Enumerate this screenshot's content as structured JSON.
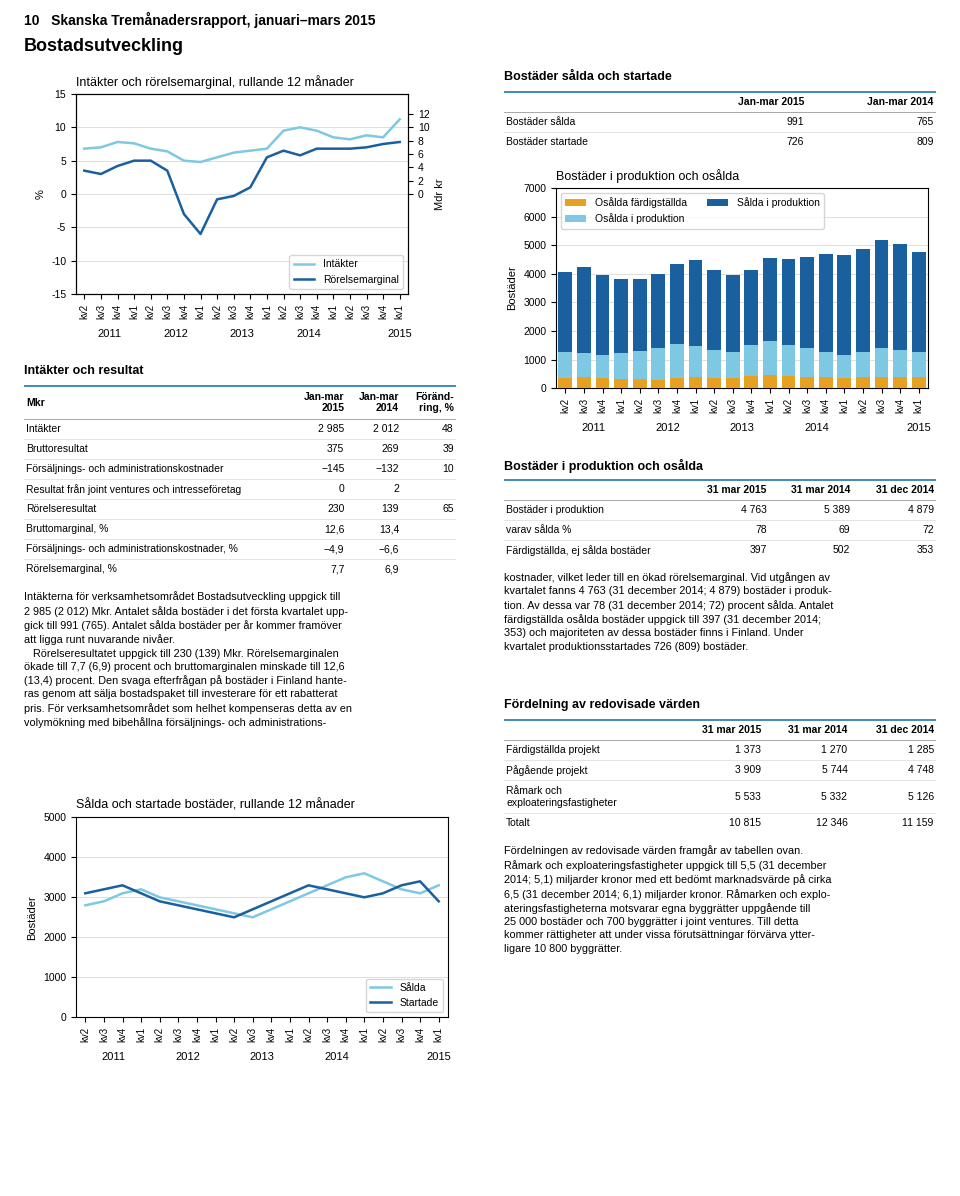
{
  "title": "10   Skanska Tremånadersrapport, januari–mars 2015",
  "subtitle": "Bostadsutveckling",
  "chart_data": [
    {
      "type": "line",
      "title": "Intäkter och rörelsemarginal, rullande 12 månader",
      "y_label": "%",
      "y2_label": "Mdr kr",
      "categories": [
        "kv2",
        "kv3",
        "kv4",
        "kv1",
        "kv2",
        "kv3",
        "kv4",
        "kv1",
        "kv2",
        "kv3",
        "kv4",
        "kv1",
        "kv2",
        "kv3",
        "kv4",
        "kv1",
        "kv2",
        "kv3",
        "kv4",
        "kv1"
      ],
      "series": [
        {
          "name": "Intäkter",
          "color": "#7ec8e3",
          "axis": "y2",
          "values": [
            6.8,
            7.0,
            7.8,
            7.6,
            6.8,
            6.4,
            5.0,
            4.8,
            5.5,
            6.2,
            6.5,
            6.8,
            9.5,
            10.0,
            9.5,
            8.5,
            8.2,
            8.8,
            8.5,
            11.2
          ]
        },
        {
          "name": "Rörelsemarginal",
          "color": "#1a5f9e",
          "values": [
            3.5,
            3.0,
            4.2,
            5.0,
            5.0,
            3.5,
            -3.0,
            -6.0,
            -0.8,
            -0.3,
            1.0,
            5.5,
            6.5,
            5.8,
            6.8,
            6.8,
            6.8,
            7.0,
            7.5,
            7.8
          ]
        }
      ],
      "ylim": [
        -15,
        15
      ],
      "yticks": [
        15,
        10,
        5,
        0,
        -5,
        -10,
        -15
      ],
      "y2lim": [
        -15,
        15
      ],
      "y2ticks": [
        12,
        10,
        8,
        6,
        4,
        2,
        0
      ],
      "annotations": [
        {
          "text": "2011",
          "x": 1.5
        },
        {
          "text": "2012",
          "x": 5.5
        },
        {
          "text": "2013",
          "x": 9.5
        },
        {
          "text": "2014",
          "x": 13.5
        },
        {
          "text": "2015",
          "x": 19.0
        }
      ],
      "grid": true,
      "legend": "lower right"
    },
    {
      "type": "table",
      "title": "Intäkter och resultat",
      "columns": [
        "Mkr",
        "Jan-mar\n2015",
        "Jan-mar\n2014",
        "Föränd-\nring, %"
      ],
      "rows": [
        [
          "Intäkter",
          "2 985",
          "2 012",
          "48"
        ],
        [
          "Bruttoresultat",
          "375",
          "269",
          "39"
        ],
        [
          "Försäljnings- och administrationskostnader",
          "−145",
          "−132",
          "10"
        ],
        [
          "Resultat från joint ventures och intresseföretag",
          "0",
          "2",
          null
        ],
        [
          "Rörelseresultat",
          "230",
          "139",
          "65"
        ],
        [
          "Bruttomarginal, %",
          "12,6",
          "13,4",
          null
        ],
        [
          "Försäljnings- och administrationskostnader, %",
          "−4,9",
          "−6,6",
          null
        ],
        [
          "Rörelsemarginal, %",
          "7,7",
          "6,9",
          null
        ]
      ]
    },
    {
      "type": "text",
      "text": "Intäkterna för verksamhetsområdet Bostadsutveckling uppgick till\n2 985 (2 012) Mkr. Antalet sålda bostäder i det första kvartalet upp-\ngick till 991 (765). Antalet sålda bostäder per år kommer framöver\natt ligga runt nuvarande nivåer.\n   Rörelseresultatet uppgick till 230 (139) Mkr. Rörelsemarginalen\nökade till 7,7 (6,9) procent och bruttomarginalen minskade till 12,6\n(13,4) procent. Den svaga efterfrågan på bostäder i Finland hante-\nras genom att sälja bostadspaket till investerare för ett rabatterat\npris. För verksamhetsområdet som helhet kompenseras detta av en\nvolymökning med bibehållna försäljnings- och administrations-"
    },
    {
      "type": "line",
      "title": "Sålda och startade bostäder, rullande 12 månader",
      "y_label": "Bostäder",
      "categories": [
        "kv2",
        "kv3",
        "kv4",
        "kv1",
        "kv2",
        "kv3",
        "kv4",
        "kv1",
        "kv2",
        "kv3",
        "kv4",
        "kv1",
        "kv2",
        "kv3",
        "kv4",
        "kv1",
        "kv2",
        "kv3",
        "kv4",
        "kv1"
      ],
      "series": [
        {
          "name": "Sålda",
          "color": "#7ec8e3",
          "values": [
            2800,
            2900,
            3100,
            3200,
            3000,
            2900,
            2800,
            2700,
            2600,
            2500,
            2700,
            2900,
            3100,
            3300,
            3500,
            3600,
            3400,
            3200,
            3100,
            3300
          ]
        },
        {
          "name": "Startade",
          "color": "#1a5f9e",
          "values": [
            3100,
            3200,
            3300,
            3100,
            2900,
            2800,
            2700,
            2600,
            2500,
            2700,
            2900,
            3100,
            3300,
            3200,
            3100,
            3000,
            3100,
            3300,
            3400,
            2900
          ]
        }
      ],
      "ylim": [
        0,
        5000
      ],
      "yticks": [
        0,
        1000,
        2000,
        3000,
        4000,
        5000
      ],
      "annotations": [
        {
          "text": "2011",
          "x": 1.5
        },
        {
          "text": "2012",
          "x": 5.5
        },
        {
          "text": "2013",
          "x": 9.5
        },
        {
          "text": "2014",
          "x": 13.5
        },
        {
          "text": "2015",
          "x": 19.0
        }
      ],
      "grid": true,
      "legend": "lower right"
    },
    {
      "type": "table",
      "title": "Bostäder sålda och startade",
      "columns": [
        null,
        "Jan-mar 2015",
        "Jan-mar 2014"
      ],
      "rows": [
        [
          "Bostäder sålda",
          "991",
          "765"
        ],
        [
          "Bostäder startade",
          "726",
          "809"
        ]
      ]
    },
    {
      "type": "bar",
      "stacked": true,
      "title": "Bostäder i produktion och osålda",
      "y_label": "Bostäder",
      "categories": [
        "kv2",
        "kv3",
        "kv4",
        "kv1",
        "kv2",
        "kv3",
        "kv4",
        "kv1",
        "kv2",
        "kv3",
        "kv4",
        "kv1",
        "kv2",
        "kv3",
        "kv4",
        "kv1",
        "kv2",
        "kv3",
        "kv4",
        "kv1"
      ],
      "series": [
        {
          "name": "Osålda färdigställda",
          "color": "#e8a020",
          "values": [
            350,
            380,
            360,
            330,
            310,
            290,
            350,
            380,
            340,
            360,
            420,
            450,
            420,
            400,
            380,
            360,
            380,
            400,
            390,
            397
          ]
        },
        {
          "name": "Osålda i produktion",
          "color": "#7ec8e3",
          "values": [
            900,
            850,
            800,
            900,
            1000,
            1100,
            1200,
            1100,
            1000,
            900,
            1100,
            1200,
            1100,
            1000,
            900,
            800,
            900,
            1000,
            950,
            850
          ]
        },
        {
          "name": "Sålda i produktion",
          "color": "#1a5f9e",
          "values": [
            2800,
            3000,
            2800,
            2600,
            2500,
            2600,
            2800,
            3000,
            2800,
            2700,
            2600,
            2900,
            3000,
            3200,
            3400,
            3500,
            3600,
            3800,
            3700,
            3516
          ]
        }
      ],
      "ylim": [
        0,
        7000
      ],
      "yticks": [
        0,
        1000,
        2000,
        3000,
        4000,
        5000,
        6000,
        7000
      ],
      "annotations": [
        {
          "text": "2011",
          "x": 1.5
        },
        {
          "text": "2012",
          "x": 5.5
        },
        {
          "text": "2013",
          "x": 9.5
        },
        {
          "text": "2014",
          "x": 13.5
        },
        {
          "text": "2015",
          "x": 19.0
        }
      ],
      "grid": true,
      "legend": "upper left"
    },
    {
      "type": "table",
      "title": "Bostäder i produktion och osålda",
      "columns": [
        null,
        "31 mar 2015",
        "31 mar 2014",
        "31 dec 2014"
      ],
      "rows": [
        [
          "Bostäder i produktion",
          "4 763",
          "5 389",
          "4 879"
        ],
        [
          "varav sålda %",
          "78",
          "69",
          "72"
        ],
        [
          "Färdigställda, ej sålda bostäder",
          "397",
          "502",
          "353"
        ]
      ]
    },
    {
      "type": "text",
      "text": "kostnader, vilket leder till en ökad rörelsemarginal. Vid utgången av\nkvartalet fanns 4 763 (31 december 2014; 4 879) bostäder i produk-\ntion. Av dessa var 78 (31 december 2014; 72) procent sålda. Antalet\nfärdigställda osålda bostäder uppgick till 397 (31 december 2014;\n353) och majoriteten av dessa bostäder finns i Finland. Under\nkvartalet produktionsstartades 726 (809) bostäder."
    },
    {
      "type": "table",
      "title": "Fördelning av redovisade värden",
      "columns": [
        null,
        "31 mar 2015",
        "31 mar 2014",
        "31 dec 2014"
      ],
      "rows": [
        [
          "Färdigställda projekt",
          "1 373",
          "1 270",
          "1 285"
        ],
        [
          "Pågående projekt",
          "3 909",
          "5 744",
          "4 748"
        ],
        [
          "Råmark och\nexploateringsfastigheter",
          "5 533",
          "5 332",
          "5 126"
        ],
        [
          "Totalt",
          "10 815",
          "12 346",
          "11 159"
        ]
      ]
    },
    {
      "type": "text",
      "text": "Fördelningen av redovisade värden framgår av tabellen ovan.\nRåmark och exploateringsfastigheter uppgick till 5,5 (31 december\n2014; 5,1) miljarder kronor med ett bedömt marknadsvärde på cirka\n6,5 (31 december 2014; 6,1) miljarder kronor. Råmarken och explo-\nateringsfastigheterna motsvarar egna byggrätter uppgående till\n25 000 bostäder och 700 byggrätter i joint ventures. Till detta\nkommer rättigheter att under vissa förutsättningar förvärva ytter-\nligare 10 800 byggrätter."
    }
  ]
}
